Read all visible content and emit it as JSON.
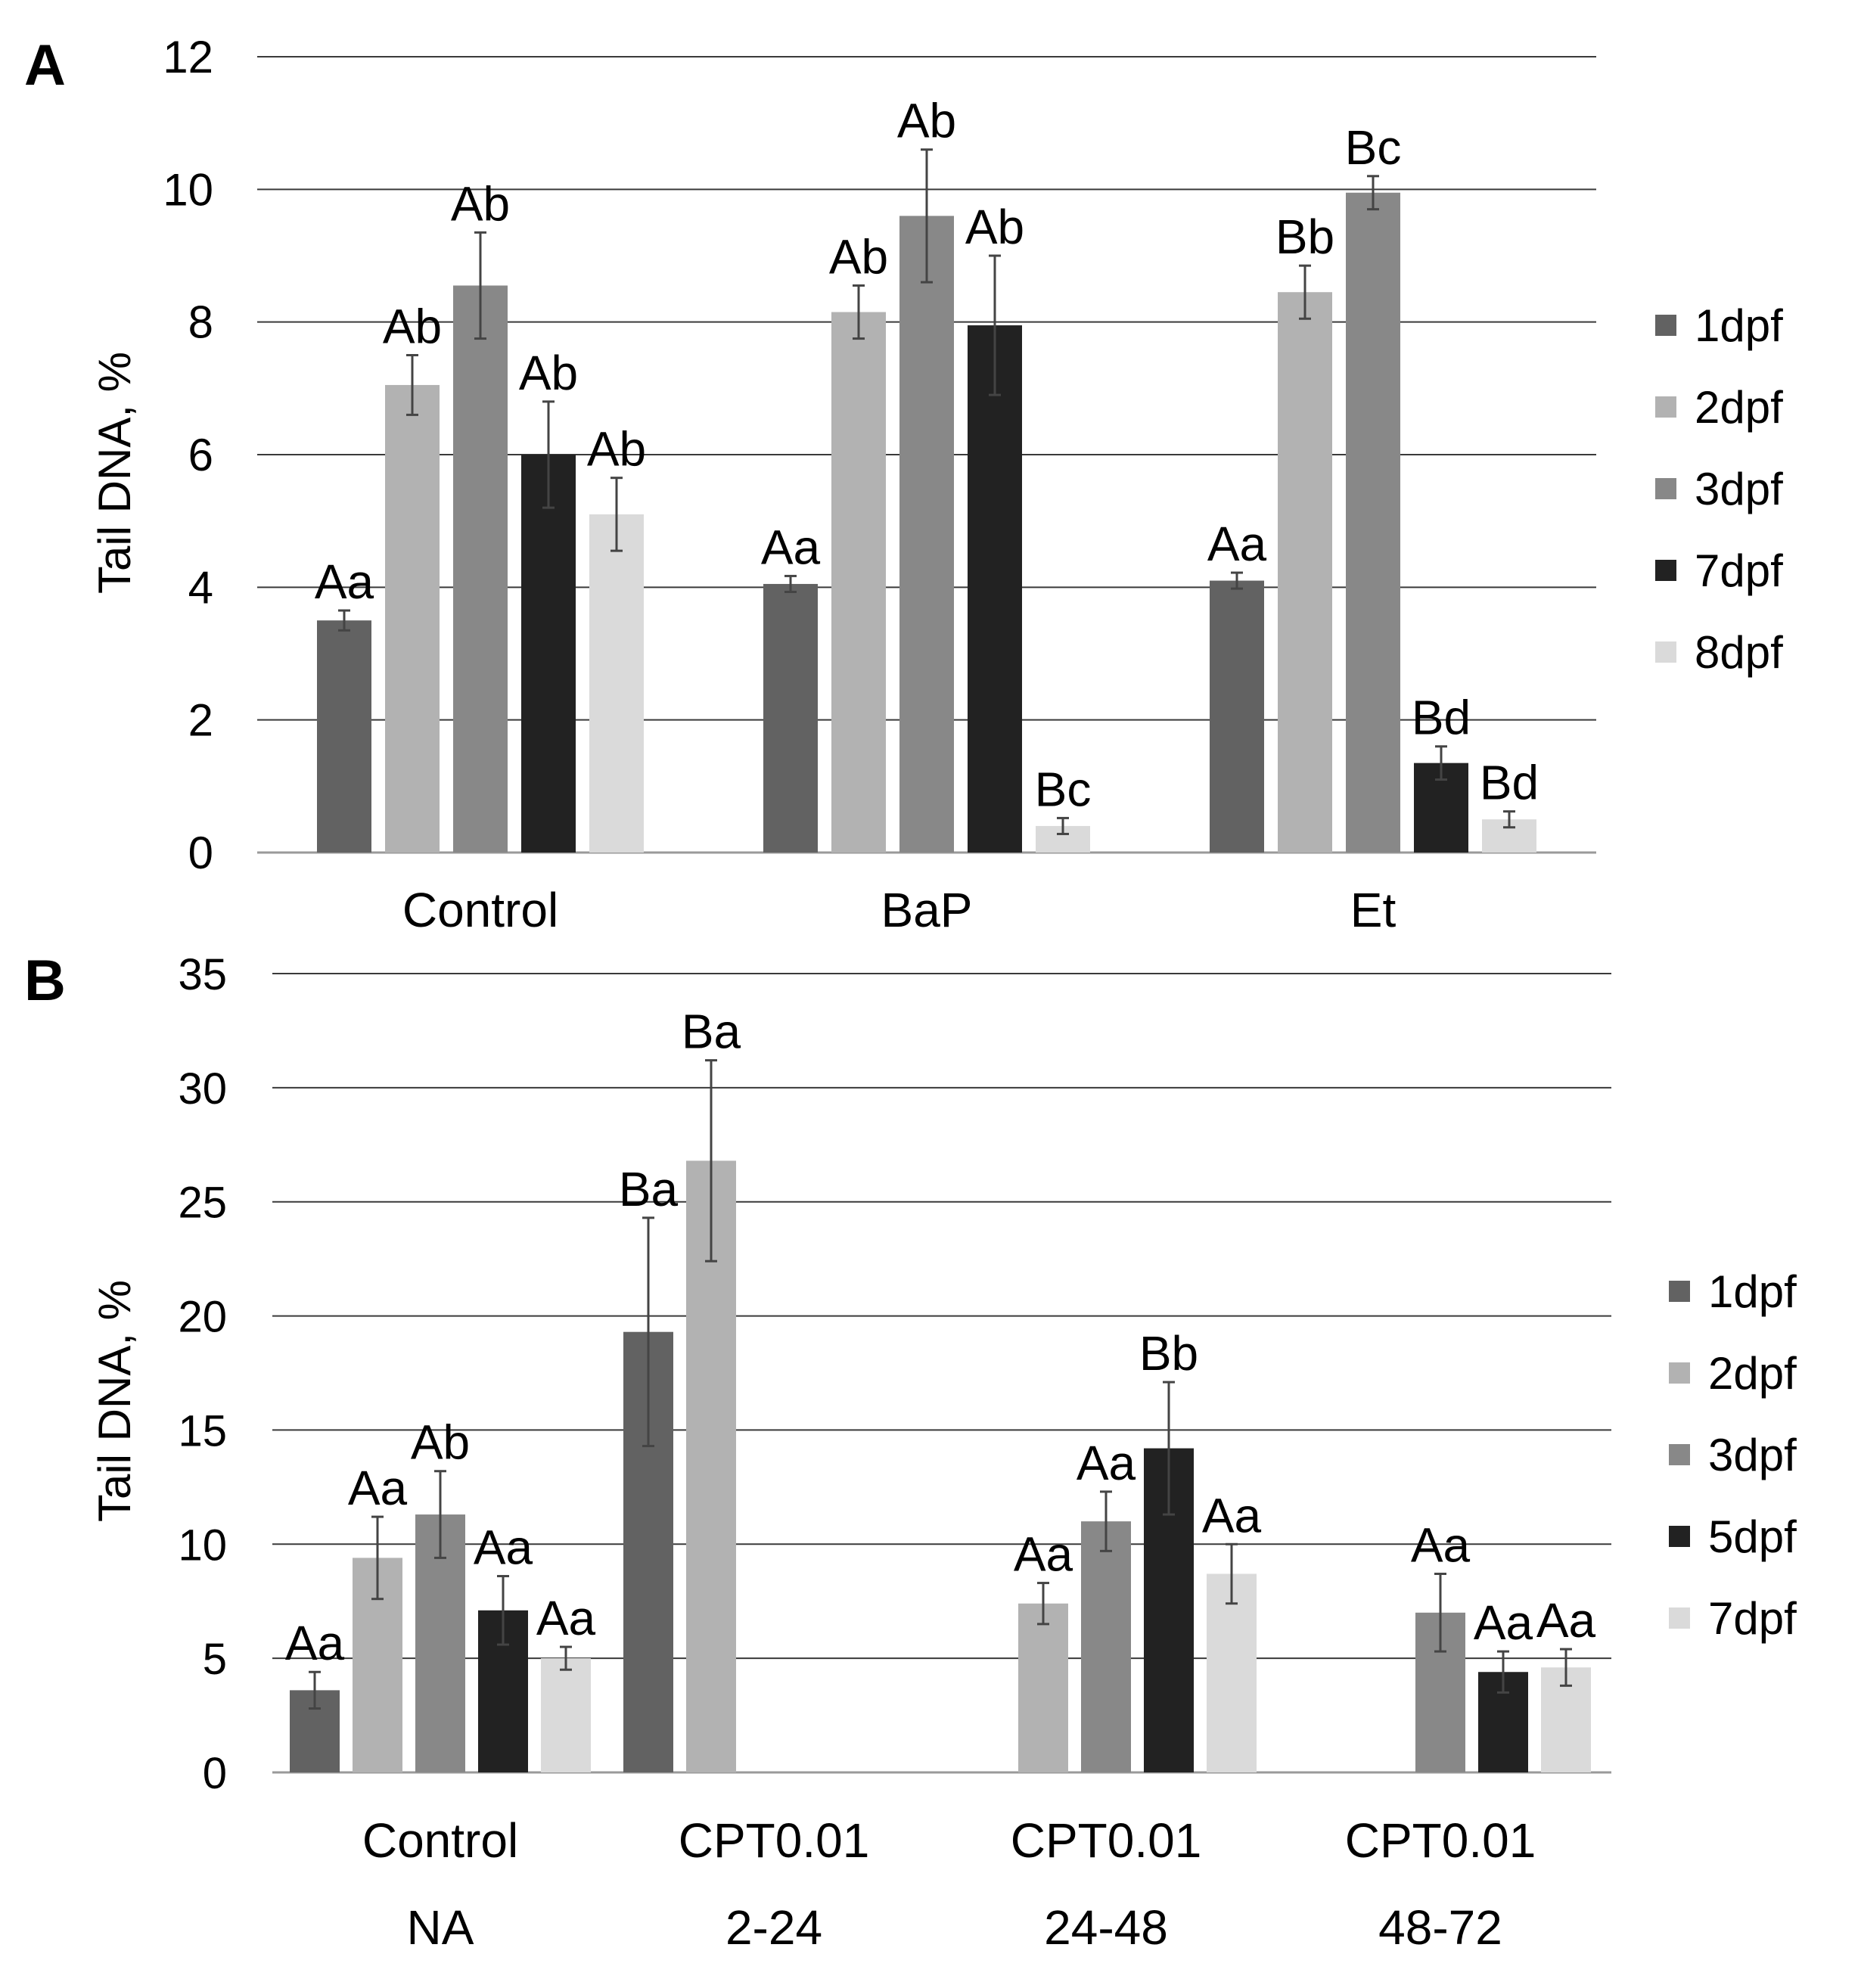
{
  "chart_data": [
    {
      "panel_label": "A",
      "type": "bar",
      "title": "",
      "xlabel": "",
      "ylabel": "Tail DNA, %",
      "ylim": [
        0,
        12
      ],
      "yticks": [
        "0",
        "2",
        "4",
        "6",
        "8",
        "10",
        "12"
      ],
      "grid": true,
      "legend_position": "right",
      "categories": [
        "Control",
        "BaP",
        "Et"
      ],
      "series": [
        {
          "name": "1dpf",
          "color": "#626262",
          "values": [
            3.5,
            4.05,
            4.1
          ],
          "errors": [
            0.15,
            0.12,
            0.12
          ],
          "labels": [
            "Aa",
            "Aa",
            "Aa"
          ]
        },
        {
          "name": "2dpf",
          "color": "#b2b2b2",
          "values": [
            7.05,
            8.15,
            8.45
          ],
          "errors": [
            0.45,
            0.4,
            0.4
          ],
          "labels": [
            "Ab",
            "Ab",
            "Bb"
          ]
        },
        {
          "name": "3dpf",
          "color": "#888888",
          "values": [
            8.55,
            9.6,
            9.95
          ],
          "errors": [
            0.8,
            1.0,
            0.25
          ],
          "labels": [
            "Ab",
            "Ab",
            "Bc"
          ]
        },
        {
          "name": "7dpf",
          "color": "#222222",
          "values": [
            6.0,
            7.95,
            1.35
          ],
          "errors": [
            0.8,
            1.05,
            0.25
          ],
          "labels": [
            "Ab",
            "Ab",
            "Bd"
          ]
        },
        {
          "name": "8dpf",
          "color": "#dadada",
          "values": [
            5.1,
            0.4,
            0.5
          ],
          "errors": [
            0.55,
            0.12,
            0.12
          ],
          "labels": [
            "Ab",
            "Bc",
            "Bd"
          ]
        }
      ]
    },
    {
      "panel_label": "B",
      "type": "bar",
      "title": "",
      "xlabel": "",
      "ylabel": "Tail DNA, %",
      "ylim": [
        0,
        35
      ],
      "yticks": [
        "0",
        "5",
        "10",
        "15",
        "20",
        "25",
        "30",
        "35"
      ],
      "grid": true,
      "legend_position": "right",
      "categories": [
        "Control",
        "CPT0.01",
        "CPT0.01",
        "CPT0.01"
      ],
      "sub_categories": [
        "NA",
        "2-24",
        "24-48",
        "48-72"
      ],
      "series": [
        {
          "name": "1dpf",
          "color": "#626262",
          "values": [
            3.6,
            19.3,
            null,
            null
          ],
          "errors": [
            0.8,
            5.0,
            null,
            null
          ],
          "labels": [
            "Aa",
            "Ba",
            null,
            null
          ]
        },
        {
          "name": "2dpf",
          "color": "#b2b2b2",
          "values": [
            9.4,
            26.8,
            7.4,
            null
          ],
          "errors": [
            1.8,
            4.4,
            0.9,
            null
          ],
          "labels": [
            "Aa",
            "Ba",
            "Aa",
            null
          ]
        },
        {
          "name": "3dpf",
          "color": "#888888",
          "values": [
            11.3,
            null,
            11.0,
            7.0
          ],
          "errors": [
            1.9,
            null,
            1.3,
            1.7
          ],
          "labels": [
            "Ab",
            null,
            "Aa",
            "Aa"
          ]
        },
        {
          "name": "5dpf",
          "color": "#222222",
          "values": [
            7.1,
            null,
            14.2,
            4.4
          ],
          "errors": [
            1.5,
            null,
            2.9,
            0.9
          ],
          "labels": [
            "Aa",
            null,
            "Bb",
            "Aa"
          ]
        },
        {
          "name": "7dpf",
          "color": "#dadada",
          "values": [
            5.0,
            null,
            8.7,
            4.6
          ],
          "errors": [
            0.5,
            null,
            1.3,
            0.8
          ],
          "labels": [
            "Aa",
            null,
            "Aa",
            "Aa"
          ]
        }
      ]
    }
  ]
}
